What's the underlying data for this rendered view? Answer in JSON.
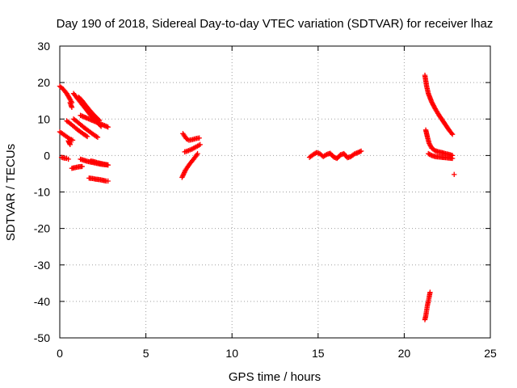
{
  "chart_data": {
    "type": "scatter",
    "title": "Day 190 of 2018, Sidereal Day-to-day VTEC variation (SDTVAR) for receiver lhaz",
    "xlabel": "GPS time / hours",
    "ylabel": "SDTVAR / TECUs",
    "xlim": [
      0,
      25
    ],
    "ylim": [
      -50,
      30
    ],
    "x_ticks": [
      0,
      5,
      10,
      15,
      20,
      25
    ],
    "y_ticks": [
      -50,
      -40,
      -30,
      -20,
      -10,
      0,
      10,
      20,
      30
    ],
    "grid": true,
    "legend": "none",
    "marker": "+",
    "color": "#ff0000",
    "series": [
      {
        "segments": [
          {
            "x": [
              0.0,
              0.2,
              0.4,
              0.55,
              0.7
            ],
            "y": [
              19,
              18.2,
              17,
              15.8,
              14.5
            ]
          },
          {
            "x": [
              0.6,
              0.65,
              0.7
            ],
            "y": [
              14.5,
              13.8,
              13.2
            ]
          },
          {
            "x": [
              0.0,
              0.15,
              0.3,
              0.45,
              0.6,
              0.75
            ],
            "y": [
              6.5,
              6.0,
              5.5,
              5.0,
              4.5,
              4.2
            ]
          },
          {
            "x": [
              0.5,
              0.55,
              0.6
            ],
            "y": [
              4.0,
              3.5,
              3.0
            ]
          },
          {
            "x": [
              0.1,
              0.25,
              0.4,
              0.5
            ],
            "y": [
              -0.5,
              -0.7,
              -0.8,
              -1.0
            ]
          },
          {
            "x": [
              0.7,
              0.9,
              1.1,
              1.3
            ],
            "y": [
              -3.5,
              -3.3,
              -3.1,
              -3.0
            ]
          },
          {
            "x": [
              0.4,
              0.6,
              0.8,
              1.0,
              1.2,
              1.4,
              1.6
            ],
            "y": [
              9.5,
              8.8,
              8.0,
              7.2,
              6.5,
              5.8,
              5.2
            ]
          },
          {
            "x": [
              0.8,
              1.0,
              1.2,
              1.4,
              1.6,
              1.8,
              2.0,
              2.2
            ],
            "y": [
              10.0,
              9.3,
              8.5,
              7.7,
              7.0,
              6.3,
              5.6,
              5.0
            ]
          },
          {
            "x": [
              0.8,
              1.0,
              1.2,
              1.4,
              1.6,
              1.8,
              2.0,
              2.2,
              2.4
            ],
            "y": [
              17.0,
              15.8,
              14.6,
              13.4,
              12.2,
              11.0,
              10.0,
              9.0,
              8.0
            ]
          },
          {
            "x": [
              1.1,
              1.3,
              1.5,
              1.7,
              1.9,
              2.1,
              2.3
            ],
            "y": [
              16.0,
              15.0,
              13.8,
              12.6,
              11.5,
              10.5,
              9.6
            ]
          },
          {
            "x": [
              1.2,
              1.4,
              1.6,
              1.8,
              2.0,
              2.2,
              2.4,
              2.6,
              2.8
            ],
            "y": [
              11.0,
              10.6,
              10.2,
              9.8,
              9.4,
              9.0,
              8.6,
              8.2,
              7.8
            ]
          },
          {
            "x": [
              1.2,
              1.4,
              1.6,
              1.8,
              2.0,
              2.2,
              2.4,
              2.6,
              2.8
            ],
            "y": [
              -1.0,
              -1.3,
              -1.6,
              -1.8,
              -2.0,
              -2.2,
              -2.4,
              -2.5,
              -2.6
            ]
          },
          {
            "x": [
              1.8,
              2.0,
              2.2,
              2.4,
              2.6,
              2.8
            ],
            "y": [
              -1.5,
              -1.7,
              -2.0,
              -2.2,
              -2.4,
              -2.6
            ]
          },
          {
            "x": [
              1.7,
              1.9,
              2.1,
              2.3,
              2.5,
              2.7,
              2.8
            ],
            "y": [
              -6.2,
              -6.3,
              -6.5,
              -6.6,
              -6.8,
              -7.0,
              -7.0
            ]
          },
          {
            "x": [
              7.1,
              7.2,
              7.3,
              7.4,
              7.5,
              7.6,
              7.7,
              7.8,
              7.9,
              8.0
            ],
            "y": [
              -6.0,
              -5.0,
              -4.0,
              -3.3,
              -2.6,
              -2.0,
              -1.4,
              -0.8,
              -0.2,
              0.5
            ]
          },
          {
            "x": [
              7.25,
              7.4,
              7.55,
              7.7,
              7.85,
              8.0,
              8.15
            ],
            "y": [
              1.0,
              1.2,
              1.5,
              1.8,
              2.2,
              2.6,
              3.0
            ]
          },
          {
            "x": [
              7.15,
              7.25,
              7.35,
              7.5,
              7.65,
              7.8,
              7.95,
              8.1
            ],
            "y": [
              6.0,
              5.3,
              4.6,
              4.2,
              4.3,
              4.5,
              4.7,
              4.8
            ]
          },
          {
            "x": [
              14.5,
              14.7,
              14.9,
              15.1,
              15.3,
              15.5,
              15.7,
              15.9,
              16.1,
              16.3,
              16.5,
              16.7,
              16.9,
              17.1,
              17.3,
              17.5
            ],
            "y": [
              -0.5,
              0.2,
              0.8,
              0.5,
              -0.3,
              0.3,
              0.6,
              -0.4,
              -0.8,
              0.2,
              0.5,
              -0.6,
              -0.3,
              0.4,
              0.8,
              1.2
            ]
          },
          {
            "x": [
              21.2,
              21.3,
              21.4,
              21.5,
              21.6,
              21.8,
              22.0,
              22.2,
              22.4,
              22.6,
              22.8
            ],
            "y": [
              22.0,
              19.0,
              17.0,
              15.8,
              14.6,
              12.8,
              11.2,
              9.8,
              8.4,
              7.0,
              5.8
            ]
          },
          {
            "x": [
              21.25,
              21.35,
              21.45,
              21.6,
              21.8,
              22.0,
              22.2,
              22.4,
              22.6,
              22.8
            ],
            "y": [
              7.0,
              5.0,
              3.3,
              2.0,
              1.3,
              1.0,
              0.8,
              0.5,
              0.3,
              0.0
            ]
          },
          {
            "x": [
              21.4,
              21.6,
              21.8,
              22.0,
              22.2,
              22.4,
              22.6,
              22.8
            ],
            "y": [
              0.5,
              0.0,
              -0.3,
              -0.4,
              -0.5,
              -0.6,
              -0.7,
              -0.8
            ]
          },
          {
            "x": [
              22.9
            ],
            "y": [
              -5.2
            ]
          },
          {
            "x": [
              21.2,
              21.25,
              21.3,
              21.35,
              21.4,
              21.45,
              21.5
            ],
            "y": [
              -45.0,
              -44.0,
              -42.5,
              -41.0,
              -40.0,
              -38.8,
              -37.5
            ]
          }
        ]
      }
    ]
  }
}
